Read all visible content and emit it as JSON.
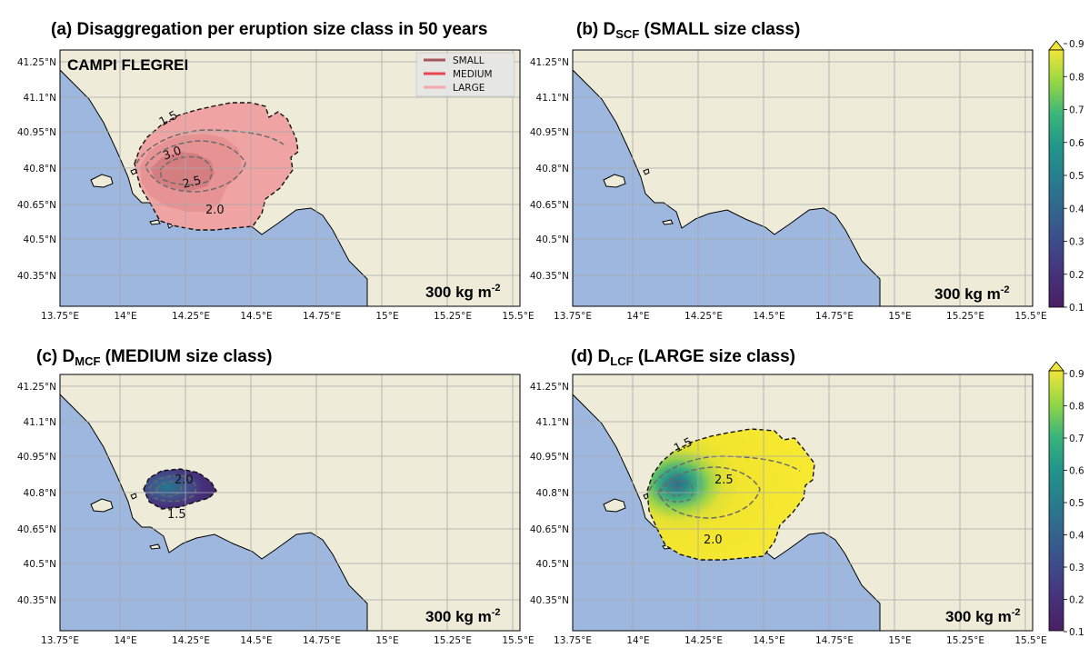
{
  "figure": {
    "panels": [
      {
        "id": "a",
        "title_prefix": "(a) Disaggregation per eruption size class in 50 years",
        "sub": "",
        "title_suffix": "",
        "load_text": "300 kg m",
        "load_sup": "-2",
        "region_label": "CAMPI FLEGREI",
        "contour_labels": [
          "1.5",
          "3.0",
          "2.5",
          "2.0"
        ]
      },
      {
        "id": "b",
        "title_prefix": "(b) D",
        "sub": "SCF",
        "title_suffix": " (SMALL size class)",
        "load_text": "300 kg m",
        "load_sup": "-2",
        "region_label": "",
        "contour_labels": []
      },
      {
        "id": "c",
        "title_prefix": "(c) D",
        "sub": "MCF",
        "title_suffix": " (MEDIUM size class)",
        "load_text": "300 kg m",
        "load_sup": "-2",
        "region_label": "",
        "contour_labels": [
          "2.0",
          "1.5"
        ]
      },
      {
        "id": "d",
        "title_prefix": "(d) D",
        "sub": "LCF",
        "title_suffix": " (LARGE size class)",
        "load_text": "300 kg m",
        "load_sup": "-2",
        "region_label": "",
        "contour_labels": [
          "1.5",
          "2.5",
          "2.0"
        ]
      }
    ],
    "x_ticks": [
      "13.75°E",
      "14°E",
      "14.25°E",
      "14.5°E",
      "14.75°E",
      "15°E",
      "15.25°E",
      "15.5°E"
    ],
    "y_ticks": [
      "41.25°N",
      "41.1°N",
      "40.95°N",
      "40.8°N",
      "40.65°N",
      "40.5°N",
      "40.35°N"
    ],
    "legend": [
      {
        "label": "SMALL",
        "color": "#a8585c"
      },
      {
        "label": "MEDIUM",
        "color": "#e8454f"
      },
      {
        "label": "LARGE",
        "color": "#f2a7ad"
      }
    ],
    "colorbar_ticks": [
      "0.9",
      "0.8",
      "0.7",
      "0.6",
      "0.5",
      "0.4",
      "0.3",
      "0.2",
      "0.1"
    ],
    "colorbar_colors": [
      "#4a1f63",
      "#472d6f",
      "#3f4a89",
      "#33668d",
      "#287d8e",
      "#21918c",
      "#3bb57a",
      "#7ed34f",
      "#e4e22a"
    ],
    "colors": {
      "land": "#eeebd9",
      "sea": "#9db7df",
      "grid": "#a8a8a8",
      "pink": "#efa3a3"
    }
  }
}
